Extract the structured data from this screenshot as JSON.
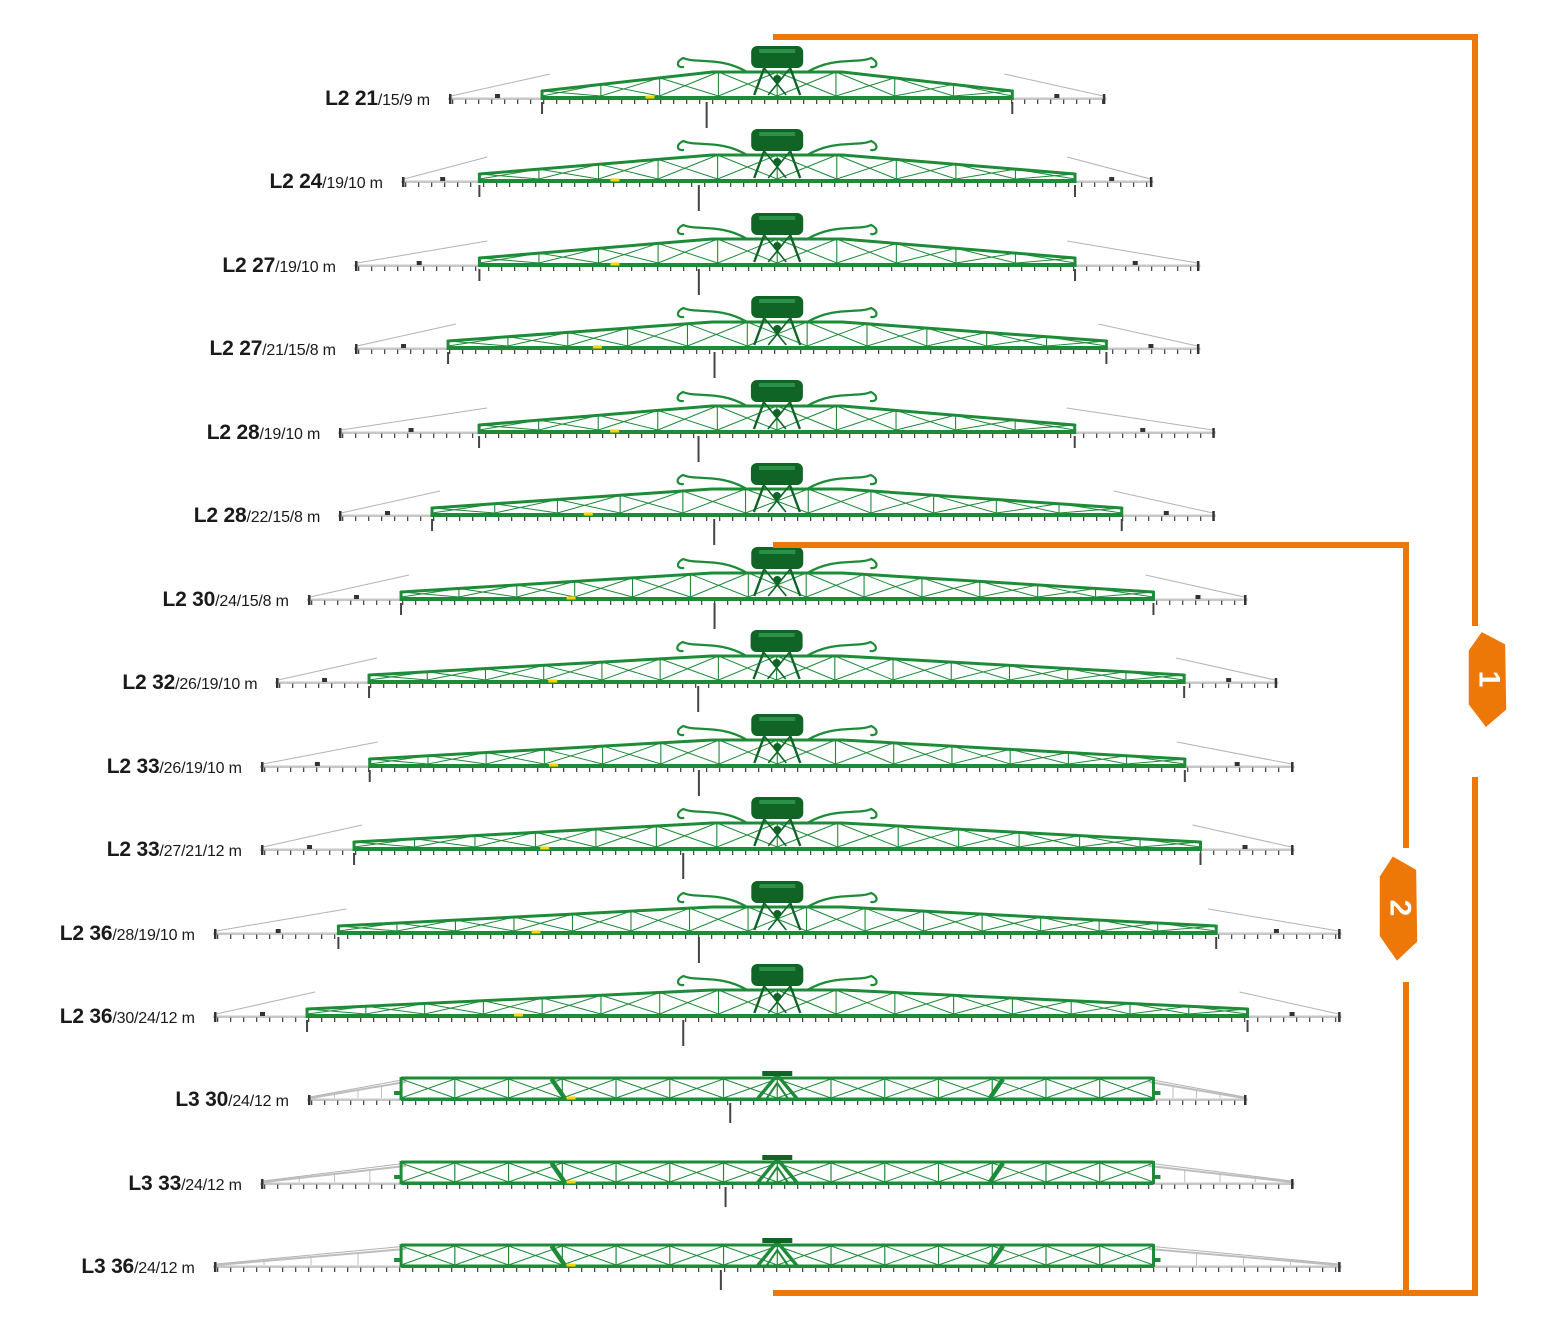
{
  "figure": {
    "description": "Sprayer boom model lineup diagram",
    "unit_suffix": "m"
  },
  "colors": {
    "orange": "#ED7807",
    "green": "#1E8B39",
    "green_dark": "#0F6426",
    "bar_gray": "#C7C7C7",
    "wire_gray": "#B3B3B3",
    "tip_gray": "#BDBDBD",
    "tick_dark": "#4A4A4A",
    "clamp_dark": "#333333",
    "pin_dark": "#444444",
    "yellow": "#FFD400",
    "label_text": "#1A1A1A"
  },
  "booms": [
    {
      "model": "L2 21",
      "sizes": "/15/9 m",
      "family": "L2",
      "widths_m": [
        21,
        15,
        9
      ]
    },
    {
      "model": "L2 24",
      "sizes": "/19/10 m",
      "family": "L2",
      "widths_m": [
        24,
        19,
        10
      ]
    },
    {
      "model": "L2 27",
      "sizes": "/19/10 m",
      "family": "L2",
      "widths_m": [
        27,
        19,
        10
      ]
    },
    {
      "model": "L2 27",
      "sizes": "/21/15/8 m",
      "family": "L2",
      "widths_m": [
        27,
        21,
        15,
        8
      ]
    },
    {
      "model": "L2 28",
      "sizes": "/19/10 m",
      "family": "L2",
      "widths_m": [
        28,
        19,
        10
      ]
    },
    {
      "model": "L2 28",
      "sizes": "/22/15/8 m",
      "family": "L2",
      "widths_m": [
        28,
        22,
        15,
        8
      ]
    },
    {
      "model": "L2 30",
      "sizes": "/24/15/8 m",
      "family": "L2",
      "widths_m": [
        30,
        24,
        15,
        8
      ]
    },
    {
      "model": "L2 32",
      "sizes": "/26/19/10 m",
      "family": "L2",
      "widths_m": [
        32,
        26,
        19,
        10
      ]
    },
    {
      "model": "L2 33",
      "sizes": "/26/19/10 m",
      "family": "L2",
      "widths_m": [
        33,
        26,
        19,
        10
      ]
    },
    {
      "model": "L2 33",
      "sizes": "/27/21/12 m",
      "family": "L2",
      "widths_m": [
        33,
        27,
        21,
        12
      ]
    },
    {
      "model": "L2 36",
      "sizes": "/28/19/10 m",
      "family": "L2",
      "widths_m": [
        36,
        28,
        19,
        10
      ]
    },
    {
      "model": "L2 36",
      "sizes": "/30/24/12 m",
      "family": "L2",
      "widths_m": [
        36,
        30,
        24,
        12
      ]
    },
    {
      "model": "L3 30",
      "sizes": "/24/12 m",
      "family": "L3",
      "widths_m": [
        30,
        24,
        12
      ]
    },
    {
      "model": "L3 33",
      "sizes": "/24/12 m",
      "family": "L3",
      "widths_m": [
        33,
        24,
        12
      ]
    },
    {
      "model": "L3 36",
      "sizes": "/24/12 m",
      "family": "L3",
      "widths_m": [
        36,
        24,
        12
      ]
    }
  ],
  "group_markers": [
    {
      "label": "1"
    },
    {
      "label": "2"
    }
  ]
}
